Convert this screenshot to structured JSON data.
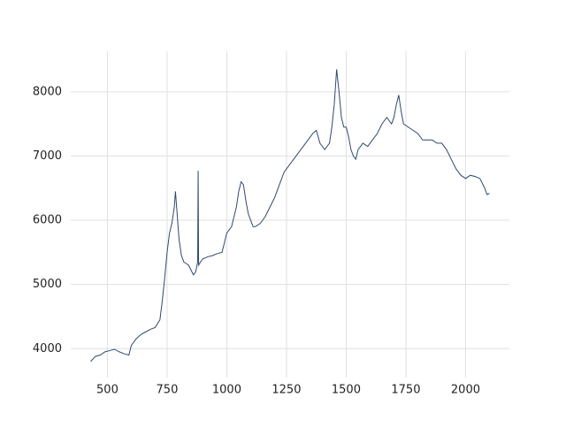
{
  "chart_data": {
    "type": "line",
    "x": [
      430,
      450,
      470,
      490,
      510,
      530,
      550,
      570,
      590,
      600,
      620,
      640,
      660,
      680,
      700,
      720,
      730,
      740,
      750,
      760,
      770,
      780,
      785,
      790,
      800,
      810,
      820,
      840,
      860,
      870,
      878,
      880,
      882,
      890,
      900,
      920,
      940,
      960,
      980,
      1000,
      1010,
      1020,
      1030,
      1040,
      1050,
      1060,
      1070,
      1080,
      1090,
      1100,
      1110,
      1120,
      1140,
      1160,
      1180,
      1200,
      1220,
      1240,
      1260,
      1280,
      1300,
      1320,
      1340,
      1360,
      1375,
      1390,
      1410,
      1430,
      1440,
      1450,
      1460,
      1470,
      1480,
      1490,
      1500,
      1510,
      1520,
      1530,
      1540,
      1550,
      1570,
      1590,
      1610,
      1630,
      1650,
      1670,
      1690,
      1700,
      1710,
      1720,
      1730,
      1740,
      1760,
      1780,
      1800,
      1820,
      1840,
      1860,
      1880,
      1900,
      1920,
      1940,
      1960,
      1980,
      2000,
      2020,
      2040,
      2060,
      2080,
      2090,
      2100
    ],
    "series": [
      {
        "color": "#2e4a6b",
        "values": [
          3800,
          3880,
          3900,
          3950,
          3970,
          3990,
          3950,
          3920,
          3900,
          4050,
          4150,
          4220,
          4260,
          4300,
          4330,
          4450,
          4750,
          5100,
          5500,
          5800,
          5950,
          6200,
          6450,
          6200,
          5700,
          5450,
          5350,
          5300,
          5150,
          5200,
          5350,
          6770,
          5300,
          5350,
          5400,
          5430,
          5450,
          5480,
          5500,
          5800,
          5850,
          5900,
          6050,
          6200,
          6450,
          6600,
          6550,
          6300,
          6100,
          6000,
          5900,
          5900,
          5950,
          6050,
          6200,
          6350,
          6550,
          6750,
          6850,
          6950,
          7050,
          7150,
          7250,
          7350,
          7400,
          7200,
          7100,
          7200,
          7450,
          7800,
          8350,
          8000,
          7600,
          7450,
          7450,
          7300,
          7100,
          7000,
          6950,
          7100,
          7200,
          7150,
          7250,
          7350,
          7500,
          7600,
          7500,
          7600,
          7800,
          7950,
          7700,
          7500,
          7450,
          7400,
          7350,
          7250,
          7250,
          7250,
          7200,
          7200,
          7100,
          6950,
          6800,
          6700,
          6650,
          6700,
          6680,
          6650,
          6500,
          6400,
          6420
        ]
      }
    ],
    "xlim": [
      346.5,
      2183.5
    ],
    "ylim": [
      3549,
      8631
    ],
    "xticks": [
      500,
      750,
      1000,
      1250,
      1500,
      1750,
      2000
    ],
    "yticks": [
      4000,
      5000,
      6000,
      7000,
      8000
    ],
    "grid": true
  }
}
